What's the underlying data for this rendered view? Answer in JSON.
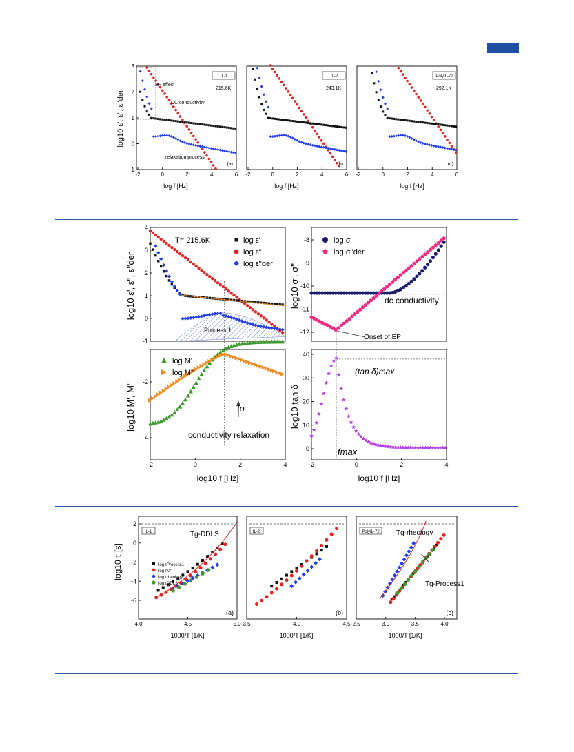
{
  "row1": {
    "ylabel": "log10 ε', ε'', ε''der",
    "xlabel": "log f [Hz]",
    "panels": [
      {
        "tag": "IL-1",
        "temp": "215.6K",
        "letter": "(a)",
        "notes": [
          "EP effect",
          "DC conductivity",
          "relaxation process"
        ],
        "xticks": [
          "-2",
          "0",
          "2",
          "4",
          "6"
        ]
      },
      {
        "tag": "IL-2",
        "temp": "243.1K",
        "letter": "(b)",
        "notes": [],
        "xticks": [
          "-2",
          "0",
          "2",
          "4",
          "6"
        ]
      },
      {
        "tag": "PolyIL-72",
        "temp": "292.1K",
        "letter": "(c)",
        "notes": [],
        "xticks": [
          "-2",
          "0",
          "2",
          "4",
          "6"
        ]
      }
    ],
    "yticks": [
      "3",
      "2",
      "1",
      "0",
      "-1"
    ]
  },
  "row2": {
    "temp_label": "T= 215.6K",
    "legend_eps": [
      "log ε'",
      "log ε''",
      "log ε''der"
    ],
    "legend_sigma": [
      "log σ'",
      "log σ''der"
    ],
    "legend_M": [
      "log M'",
      "log M''"
    ],
    "ylabel_eps": "log10 ε', ε'', ε''der",
    "ylabel_sigma": "log10 σ', σ''",
    "ylabel_M": "log10 M', M''",
    "ylabel_tan": "log10 tan δ",
    "xlabel": "log10 f [Hz]",
    "notes": {
      "process": "Process 1",
      "dc": "dc conductivity",
      "onset": "Onset of EP",
      "fsigma": "fσ",
      "condrel": "conductivity relaxation",
      "tanmax": "(tan δ)max",
      "fmax": "fmax"
    },
    "yticks_eps": [
      "4",
      "3",
      "2",
      "1",
      "0",
      "-1"
    ],
    "yticks_sigma": [
      "-8",
      "-9",
      "-10",
      "-11",
      "-12"
    ],
    "yticks_M": [
      "-2",
      "-4"
    ],
    "yticks_tan": [
      "40",
      "30",
      "20",
      "10",
      "0"
    ],
    "xticks": [
      "-2",
      "0",
      "2",
      "4"
    ]
  },
  "row3": {
    "ylabel": "log10 τ [s]",
    "xlabel": "1000/T [1/K]",
    "panels": [
      {
        "tag": "IL-1",
        "letter": "(a)",
        "note": "Tg-DDLS",
        "xticks": [
          "4.0",
          "4.5",
          "5.0"
        ]
      },
      {
        "tag": "IL-2",
        "letter": "(b)",
        "note": "",
        "xticks": [
          "3.5",
          "4.0",
          "4.5"
        ]
      },
      {
        "tag": "PolyIL-72",
        "letter": "(c)",
        "notes": [
          "Tg-rheology",
          "Tg-Process1"
        ],
        "xticks": [
          "2.5",
          "3.0",
          "3.5",
          "4.0"
        ]
      }
    ],
    "legend": [
      "log τProcess1",
      "log τM''",
      "log τrheology",
      "log τDDLS"
    ],
    "yticks": [
      "2",
      "0",
      "-2",
      "-4",
      "-6"
    ]
  },
  "colors": {
    "black": "#111111",
    "red": "#e8231f",
    "blue": "#1f3cf0",
    "green": "#3a9a2a",
    "orange": "#f08c1e",
    "navy": "#1a1a6e",
    "pink": "#ee2a84",
    "violet": "#b43ce6",
    "rule": "#2a5aa0"
  }
}
